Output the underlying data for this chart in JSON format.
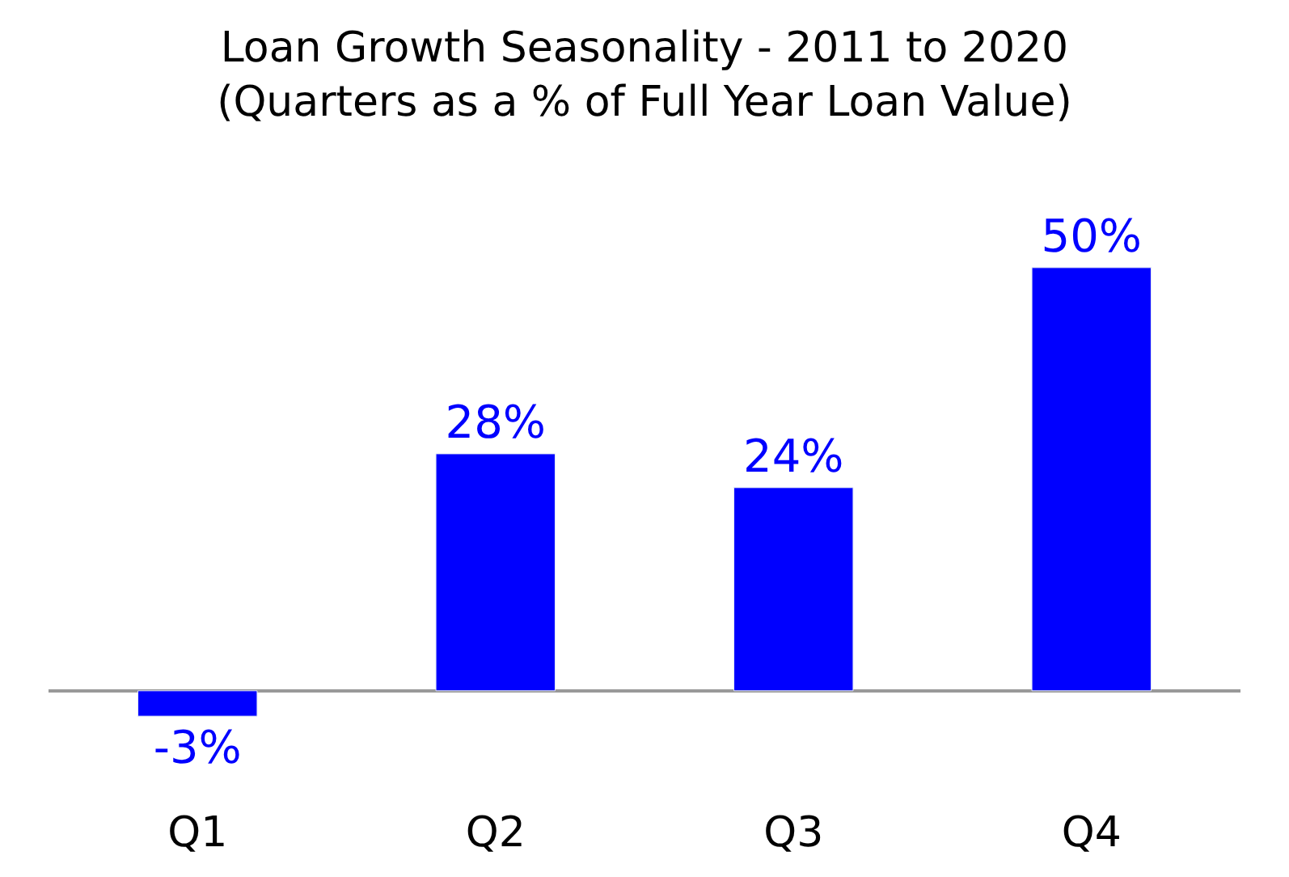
{
  "chart_data": {
    "type": "bar",
    "title": "Loan Growth Seasonality - 2011 to 2020",
    "subtitle": "(Quarters as a % of Full Year Loan Value)",
    "categories": [
      "Q1",
      "Q2",
      "Q3",
      "Q4"
    ],
    "values": [
      -3,
      28,
      24,
      50
    ],
    "value_labels": [
      "-3%",
      "28%",
      "24%",
      "50%"
    ],
    "color": "#0000ff"
  }
}
